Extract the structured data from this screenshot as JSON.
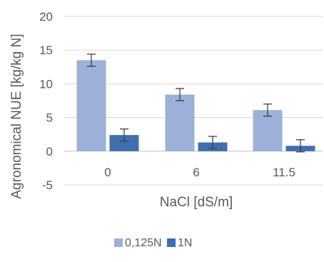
{
  "chart_data": {
    "type": "bar",
    "title": "",
    "xlabel": "NaCl [dS/m]",
    "ylabel": "Agronomical NUE [kg/kg N]",
    "categories": [
      "0",
      "6",
      "11.5"
    ],
    "series": [
      {
        "name": "0,125N",
        "values": [
          13.5,
          8.4,
          6.1
        ],
        "errors": [
          0.9,
          0.9,
          0.9
        ],
        "color": "#9bb1d9"
      },
      {
        "name": "1N",
        "values": [
          2.4,
          1.3,
          0.8
        ],
        "errors": [
          0.9,
          0.9,
          0.9
        ],
        "color": "#3f6fae"
      }
    ],
    "ylim": [
      -5,
      20
    ],
    "yticks": [
      -5,
      0,
      5,
      10,
      15,
      20
    ],
    "ytick_labels": [
      "-5",
      "0",
      "5",
      "10",
      "15",
      "20"
    ],
    "grid": true,
    "gridline_color": "#d9d9d9",
    "legend_position": "bottom"
  }
}
